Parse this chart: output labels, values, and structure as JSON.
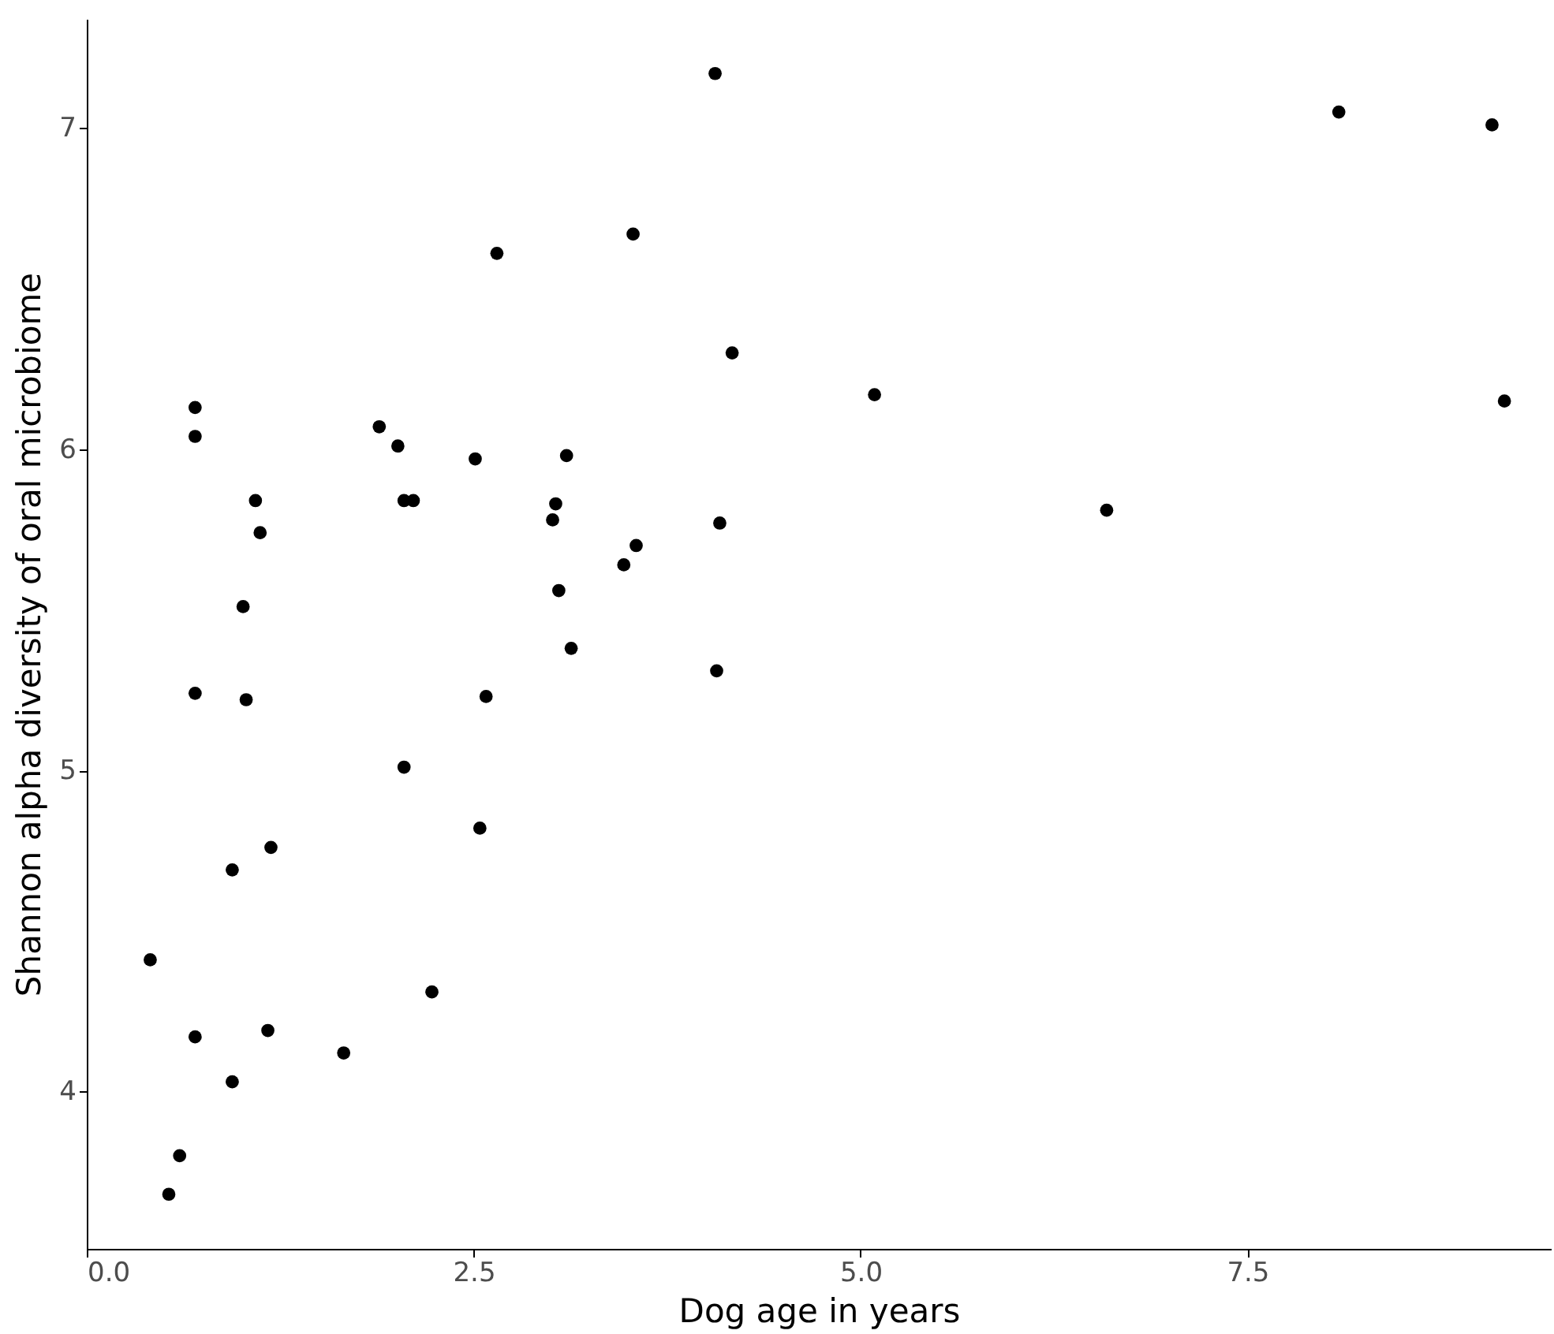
{
  "chart_data": {
    "type": "scatter",
    "xlabel": "Dog age in years",
    "ylabel": "Shannon alpha diversity of oral microbiome",
    "x": [
      0.41,
      0.53,
      0.6,
      0.7,
      0.7,
      0.7,
      0.7,
      0.94,
      0.94,
      1.01,
      1.03,
      1.09,
      1.12,
      1.17,
      1.19,
      1.66,
      1.89,
      2.01,
      2.05,
      2.11,
      2.05,
      2.23,
      2.51,
      2.54,
      2.58,
      2.65,
      3.01,
      3.03,
      3.05,
      3.1,
      3.13,
      3.47,
      3.53,
      3.55,
      4.06,
      4.07,
      4.09,
      4.17,
      5.09,
      6.59,
      8.09,
      9.08,
      9.16
    ],
    "series": [
      {
        "color": "#000000",
        "values": [
          4.41,
          3.68,
          3.8,
          6.13,
          6.04,
          5.24,
          4.17,
          4.69,
          4.03,
          5.51,
          5.22,
          5.84,
          5.74,
          4.19,
          4.76,
          4.12,
          6.07,
          6.01,
          5.84,
          5.84,
          5.01,
          4.31,
          5.97,
          4.82,
          5.23,
          6.61,
          5.78,
          5.83,
          5.56,
          5.98,
          5.38,
          5.64,
          6.67,
          5.7,
          7.17,
          5.31,
          5.77,
          6.3,
          6.17,
          5.81,
          7.05,
          7.01,
          6.15
        ]
      }
    ],
    "xlim": [
      0,
      9.46
    ],
    "xticks": [
      {
        "value": 0,
        "label": "0.0"
      },
      2.5,
      {
        "value": 5,
        "label": "5.0"
      },
      7.5
    ],
    "ylim": [
      3.51,
      7.34
    ],
    "yticks": [
      4,
      5,
      6,
      7
    ],
    "marker": "circle",
    "grid": false
  }
}
